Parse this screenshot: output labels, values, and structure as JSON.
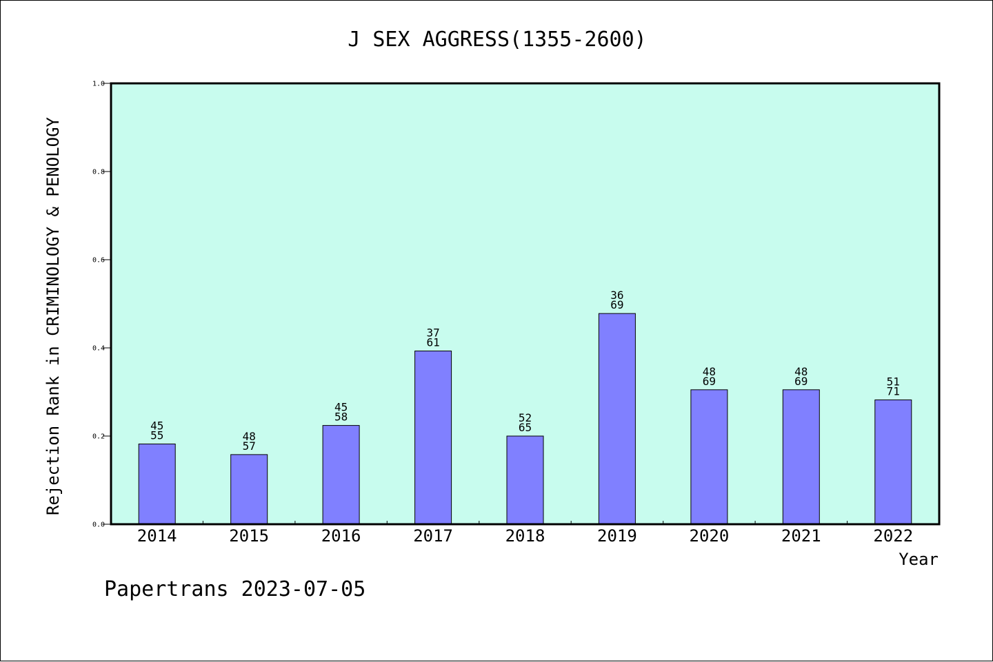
{
  "chart_data": {
    "type": "bar",
    "title": "J SEX AGGRESS(1355-2600)",
    "xlabel": "Year",
    "ylabel": "Rejection Rank in CRIMINOLOGY & PENOLOGY",
    "ylim": [
      0,
      1.0
    ],
    "yticks": [
      "0.0",
      "0.2",
      "0.4",
      "0.6",
      "0.8",
      "1.0"
    ],
    "categories": [
      "2014",
      "2015",
      "2016",
      "2017",
      "2018",
      "2019",
      "2020",
      "2021",
      "2022"
    ],
    "values": [
      0.182,
      0.158,
      0.224,
      0.393,
      0.2,
      0.478,
      0.305,
      0.305,
      0.282
    ],
    "labels_top": [
      "45",
      "48",
      "45",
      "37",
      "52",
      "36",
      "48",
      "48",
      "51"
    ],
    "labels_bottom": [
      "55",
      "57",
      "58",
      "61",
      "65",
      "69",
      "69",
      "69",
      "71"
    ],
    "grid": false,
    "legend": "none",
    "colors": {
      "plot_background": "#c8fcee",
      "bar_fill": "#8080ff",
      "bar_stroke": "#000000"
    }
  },
  "footer": "Papertrans 2023-07-05"
}
